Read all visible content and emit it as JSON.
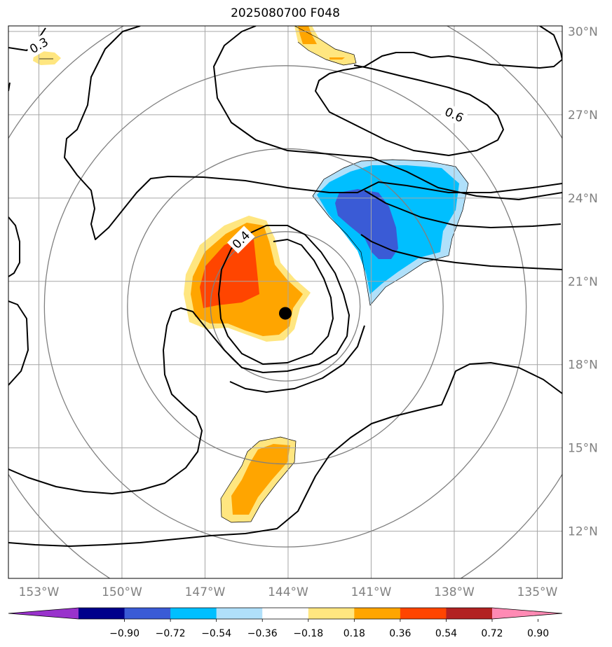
{
  "title": "2025080700 F048",
  "map": {
    "lon_range": [
      -154.1,
      -134.1
    ],
    "lat_range": [
      10.3,
      30.2
    ],
    "lon_ticks": [
      -153,
      -150,
      -147,
      -144,
      -141,
      -138,
      -135
    ],
    "lat_ticks": [
      12,
      15,
      18,
      21,
      24,
      27,
      30
    ],
    "lon_tick_labels": [
      "153°W",
      "150°W",
      "147°W",
      "144°W",
      "141°W",
      "138°W",
      "135°W"
    ],
    "lat_tick_labels": [
      "12°N",
      "15°N",
      "18°N",
      "21°N",
      "24°N",
      "27°N",
      "30°N"
    ],
    "center": {
      "lon": -144.1,
      "lat": 20.1,
      "marker": "storm-center-dot"
    },
    "range_rings_deg": [
      2.7,
      5.7,
      8.7,
      11.7
    ],
    "gridlines": true,
    "contour_labels": [
      {
        "text": "0.3",
        "lon": -153.0,
        "lat": 29.5,
        "angle": -30
      },
      {
        "text": "0.6",
        "lon": -138.0,
        "lat": 27.0,
        "angle": 25
      },
      {
        "text": "0.4",
        "lon": -145.7,
        "lat": 22.5,
        "angle": -45
      }
    ]
  },
  "colorbar": {
    "tick_labels": [
      "−0.90",
      "−0.72",
      "−0.54",
      "−0.36",
      "−0.18",
      "0.18",
      "0.36",
      "0.54",
      "0.72",
      "0.90"
    ],
    "colors": [
      "#9932cc",
      "#00008b",
      "#3a5bd6",
      "#00bfff",
      "#b0e0fa",
      "#ffffff",
      "#ffe680",
      "#ffa500",
      "#ff4500",
      "#b22222",
      "#ff8ab4"
    ],
    "extend": "both"
  },
  "colors": {
    "grid": "#a6a6a6",
    "ring": "#808080",
    "contour": "#000000"
  }
}
